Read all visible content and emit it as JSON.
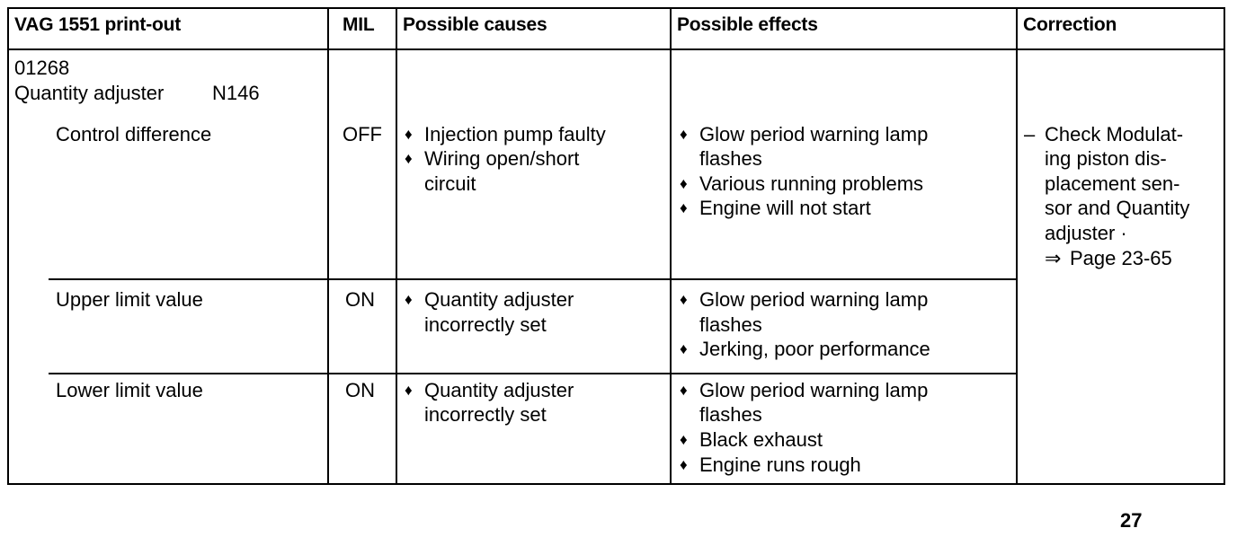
{
  "headers": {
    "printout": "VAG 1551 print-out",
    "mil": "MIL",
    "causes": "Possible causes",
    "effects": "Possible effects",
    "correction": "Correction"
  },
  "fault": {
    "code": "01268",
    "component": "Quantity adjuster",
    "component_id": "N146"
  },
  "bullet_symbol": "♦",
  "rows": [
    {
      "label": "Control difference",
      "mil": "OFF",
      "causes": [
        "Injection pump faulty",
        "Wiring open/short",
        "circuit"
      ],
      "effects": [
        "Glow period warning lamp",
        "flashes",
        "Various running problems",
        "Engine will not start"
      ]
    },
    {
      "label": "Upper limit value",
      "mil": "ON",
      "causes": [
        "Quantity adjuster",
        "incorrectly set"
      ],
      "effects": [
        "Glow period warning lamp",
        "flashes",
        "Jerking, poor performance"
      ]
    },
    {
      "label": "Lower limit value",
      "mil": "ON",
      "causes": [
        "Quantity adjuster",
        "incorrectly set"
      ],
      "effects": [
        "Glow period warning lamp",
        "flashes",
        "Black exhaust",
        "Engine runs rough"
      ]
    }
  ],
  "correction": {
    "dash": "–",
    "lines": [
      "Check Modulat-",
      "ing piston dis-",
      "placement sen-",
      "sor and Quantity",
      "adjuster ·"
    ],
    "arrow": "⇒",
    "page_ref": "Page 23-65"
  },
  "page_number": "27"
}
